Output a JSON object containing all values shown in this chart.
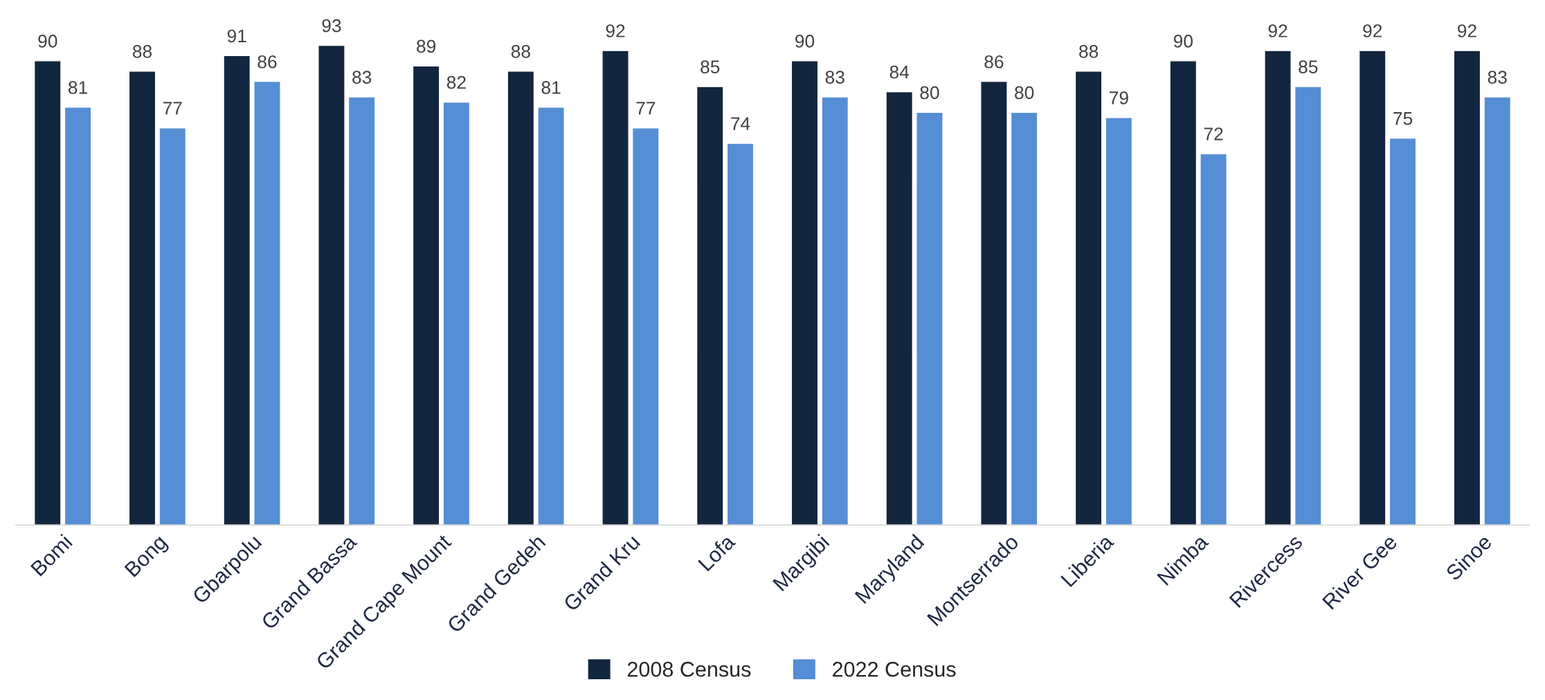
{
  "chart_data": {
    "type": "bar",
    "categories": [
      "Bomi",
      "Bong",
      "Gbarpolu",
      "Grand Bassa",
      "Grand Cape Mount",
      "Grand Gedeh",
      "Grand Kru",
      "Lofa",
      "Margibi",
      "Maryland",
      "Montserrado",
      "Liberia",
      "Nimba",
      "Rivercess",
      "River Gee",
      "Sinoe"
    ],
    "series": [
      {
        "name": "2008 Census",
        "color": "#12263f",
        "values": [
          90,
          88,
          91,
          93,
          89,
          88,
          92,
          85,
          90,
          84,
          86,
          88,
          90,
          92,
          92,
          92
        ]
      },
      {
        "name": "2022 Census",
        "color": "#558ed5",
        "values": [
          81,
          77,
          86,
          83,
          82,
          81,
          77,
          74,
          83,
          80,
          80,
          79,
          72,
          85,
          75,
          83
        ]
      }
    ],
    "data_labels": true,
    "legend": "bottom",
    "grid": false,
    "tick_labels": "x"
  }
}
